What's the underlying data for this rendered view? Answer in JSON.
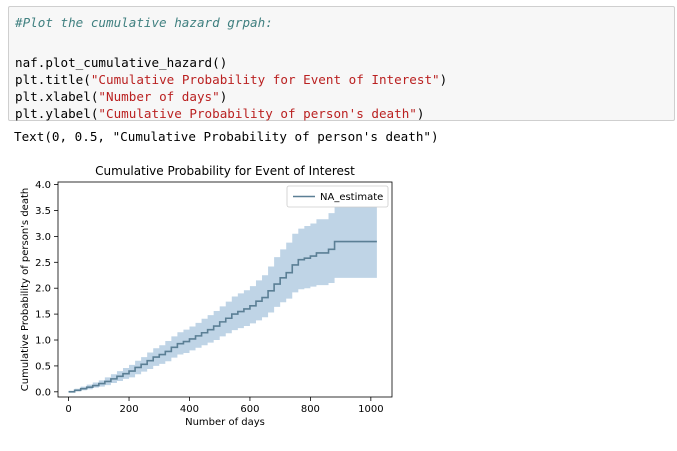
{
  "code_cell": {
    "lines": [
      {
        "kind": "comment",
        "text": "#Plot the cumulative hazard grpah:"
      },
      {
        "kind": "blank",
        "text": ""
      },
      {
        "kind": "code",
        "text": "naf.plot_cumulative_hazard()"
      },
      {
        "kind": "code",
        "prefix": "plt.title(",
        "string": "\"Cumulative Probability for Event of Interest\"",
        "suffix": ")"
      },
      {
        "kind": "code",
        "prefix": "plt.xlabel(",
        "string": "\"Number of days\"",
        "suffix": ")"
      },
      {
        "kind": "code",
        "prefix": "plt.ylabel(",
        "string": "\"Cumulative Probability of person's death\"",
        "suffix": ")"
      }
    ]
  },
  "output": {
    "text": "Text(0, 0.5, \"Cumulative Probability of person's death\")"
  },
  "colors": {
    "line": "#5b7f95",
    "band": "#a9c6de",
    "axis": "#000000"
  },
  "chart_data": {
    "type": "line",
    "title": "Cumulative Probability for Event of Interest",
    "xlabel": "Number of days",
    "ylabel": "Cumulative Probability of person's death",
    "xlim": [
      -35,
      1070
    ],
    "ylim": [
      -0.1,
      4.05
    ],
    "xticks": [
      0,
      200,
      400,
      600,
      800,
      1000
    ],
    "yticks": [
      0.0,
      0.5,
      1.0,
      1.5,
      2.0,
      2.5,
      3.0,
      3.5,
      4.0
    ],
    "ytick_labels": [
      "0.0",
      "0.5",
      "1.0",
      "1.5",
      "2.0",
      "2.5",
      "3.0",
      "3.5",
      "4.0"
    ],
    "legend": {
      "placement": "top-right",
      "entries": [
        "NA_estimate"
      ]
    },
    "grid": false,
    "series": [
      {
        "name": "NA_estimate",
        "x": [
          0,
          20,
          40,
          60,
          80,
          100,
          120,
          140,
          160,
          180,
          200,
          220,
          240,
          260,
          280,
          300,
          320,
          340,
          360,
          380,
          400,
          420,
          440,
          460,
          480,
          500,
          520,
          540,
          560,
          580,
          600,
          620,
          640,
          660,
          680,
          700,
          720,
          740,
          760,
          780,
          800,
          820,
          840,
          860,
          880,
          1020
        ],
        "y": [
          0.0,
          0.03,
          0.06,
          0.09,
          0.12,
          0.16,
          0.2,
          0.25,
          0.3,
          0.35,
          0.4,
          0.47,
          0.53,
          0.6,
          0.67,
          0.72,
          0.78,
          0.86,
          0.93,
          0.97,
          1.02,
          1.08,
          1.14,
          1.2,
          1.27,
          1.35,
          1.42,
          1.5,
          1.55,
          1.6,
          1.66,
          1.75,
          1.82,
          1.95,
          2.08,
          2.2,
          2.3,
          2.45,
          2.55,
          2.58,
          2.62,
          2.68,
          2.68,
          2.75,
          2.9,
          2.9
        ],
        "lower": [
          0.0,
          0.01,
          0.03,
          0.05,
          0.08,
          0.1,
          0.13,
          0.17,
          0.21,
          0.25,
          0.28,
          0.34,
          0.39,
          0.44,
          0.5,
          0.54,
          0.59,
          0.66,
          0.72,
          0.75,
          0.8,
          0.85,
          0.9,
          0.95,
          1.0,
          1.07,
          1.13,
          1.19,
          1.23,
          1.27,
          1.32,
          1.38,
          1.44,
          1.53,
          1.64,
          1.73,
          1.8,
          1.92,
          1.98,
          2.0,
          2.03,
          2.06,
          2.06,
          2.1,
          2.2,
          2.2
        ],
        "upper": [
          0.02,
          0.06,
          0.1,
          0.14,
          0.18,
          0.22,
          0.28,
          0.34,
          0.4,
          0.46,
          0.52,
          0.6,
          0.67,
          0.76,
          0.84,
          0.9,
          0.98,
          1.07,
          1.15,
          1.2,
          1.26,
          1.33,
          1.41,
          1.48,
          1.56,
          1.65,
          1.74,
          1.84,
          1.9,
          1.96,
          2.04,
          2.15,
          2.25,
          2.42,
          2.6,
          2.75,
          2.88,
          3.05,
          3.15,
          3.2,
          3.25,
          3.33,
          3.33,
          3.45,
          3.65,
          3.65
        ]
      }
    ]
  }
}
